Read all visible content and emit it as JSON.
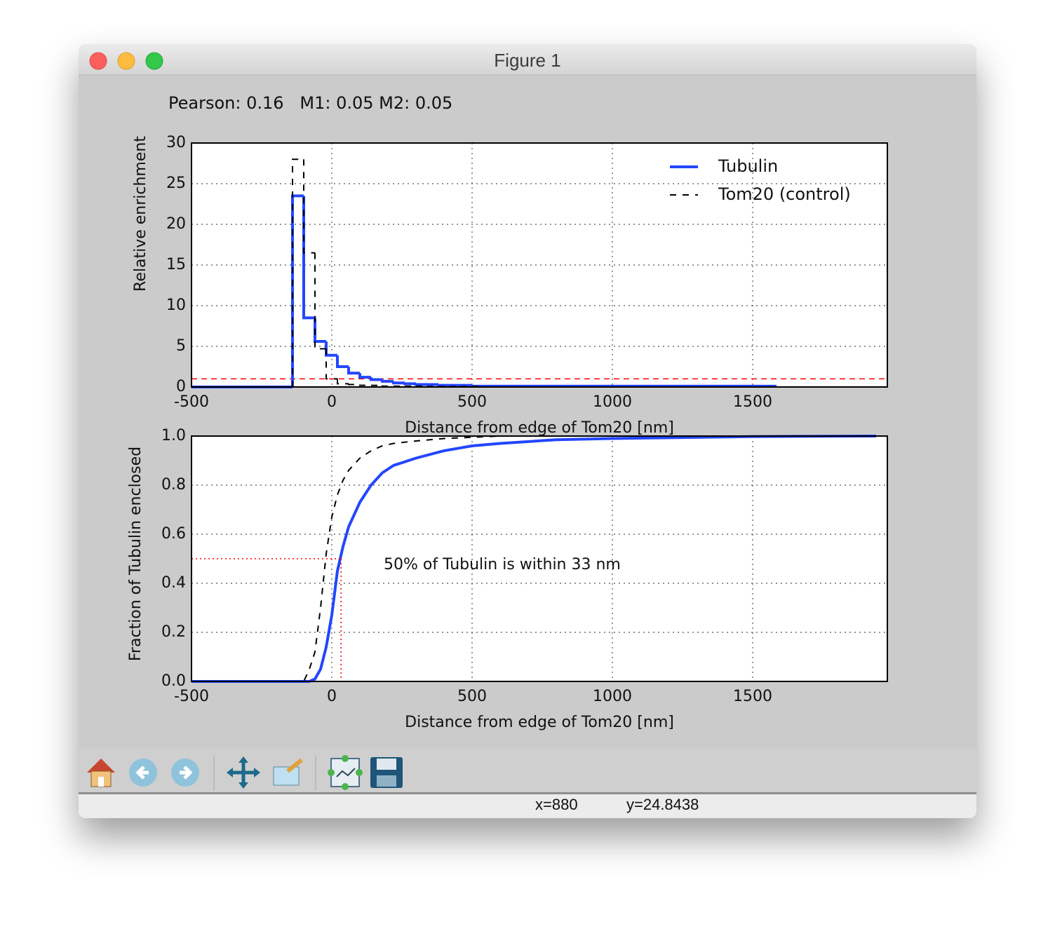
{
  "window": {
    "title": "Figure 1"
  },
  "figure_text": "Pearson: 0.16   M1: 0.05 M2: 0.05",
  "chart_data": [
    {
      "type": "histogram",
      "xlabel": "Distance from edge of Tom20 [nm]",
      "ylabel": "Relative enrichment",
      "bins": [
        -500,
        -460,
        -420,
        -380,
        -340,
        -300,
        -260,
        -220,
        -180,
        -140,
        -100,
        -60,
        -20,
        20,
        60,
        100,
        140,
        180,
        220,
        260,
        300,
        340,
        380,
        420,
        460,
        500,
        540,
        580,
        620,
        660,
        700,
        740,
        780,
        820,
        860,
        900,
        940,
        980,
        1020,
        1060,
        1100,
        1140,
        1180,
        1220,
        1260,
        1300,
        1340,
        1380,
        1420,
        1460,
        1500,
        1540,
        1580
      ],
      "series": [
        {
          "name": "Tubulin",
          "color": "#2346ff",
          "linestyle": "solid",
          "values": [
            0,
            0,
            0,
            0,
            0,
            0,
            0,
            0,
            0,
            23.5,
            8.5,
            5.6,
            3.9,
            2.5,
            1.7,
            1.2,
            0.9,
            0.7,
            0.5,
            0.4,
            0.3,
            0.3,
            0.2,
            0.2,
            0.2,
            0.1,
            0.1,
            0.1,
            0.1,
            0.1,
            0.1,
            0.1,
            0.1,
            0.1,
            0.1,
            0.1,
            0.1,
            0.1,
            0.1,
            0.1,
            0.1,
            0.1,
            0.1,
            0.1,
            0.1,
            0.1,
            0.1,
            0.1,
            0.1,
            0.1,
            0.1,
            0.1
          ]
        },
        {
          "name": "Tom20 (control)",
          "color": "#000000",
          "linestyle": "dashed",
          "values": [
            0,
            0,
            0,
            0,
            0,
            0,
            0,
            0,
            0,
            28,
            16.5,
            4.7,
            1.0,
            0.4,
            0.3,
            0.2,
            0.2,
            0.1,
            0.1,
            0.1,
            0.1,
            0.05,
            0.05,
            0.05,
            0.05,
            0.05,
            0,
            0,
            0,
            0,
            0,
            0,
            0,
            0,
            0,
            0,
            0,
            0,
            0,
            0,
            0,
            0,
            0,
            0,
            0,
            0,
            0,
            0,
            0,
            0,
            0,
            0
          ]
        }
      ],
      "hline": {
        "y": 1,
        "color": "#ff0000"
      },
      "xlim": [
        -500,
        1980
      ],
      "ylim": [
        0,
        30
      ],
      "xticks": [
        -500,
        0,
        500,
        1000,
        1500
      ],
      "yticks": [
        0,
        5,
        10,
        15,
        20,
        25,
        30
      ],
      "grid": true,
      "legend": "upper right"
    },
    {
      "type": "line",
      "xlabel": "Distance from edge of Tom20 [nm]",
      "ylabel": "Fraction of Tubulin enclosed",
      "x": [
        -500,
        -100,
        -80,
        -60,
        -40,
        -20,
        0,
        20,
        40,
        60,
        100,
        140,
        180,
        220,
        300,
        400,
        500,
        600,
        800,
        1000,
        1500,
        1940
      ],
      "series": [
        {
          "name": "Tubulin",
          "color": "#2346ff",
          "linestyle": "solid",
          "values": [
            0,
            0,
            0,
            0.01,
            0.05,
            0.14,
            0.27,
            0.45,
            0.55,
            0.63,
            0.73,
            0.8,
            0.85,
            0.88,
            0.91,
            0.94,
            0.96,
            0.97,
            0.985,
            0.99,
            0.998,
            1.0
          ]
        },
        {
          "name": "Tom20 (control)",
          "color": "#000000",
          "linestyle": "dashed",
          "values": [
            0,
            0,
            0.05,
            0.12,
            0.3,
            0.52,
            0.67,
            0.76,
            0.82,
            0.86,
            0.91,
            0.94,
            0.96,
            0.97,
            0.98,
            0.99,
            0.995,
            1.0,
            1.0,
            1.0,
            1.0,
            1.0
          ]
        }
      ],
      "guide": {
        "x": 33,
        "y": 0.5,
        "color": "#ff0000"
      },
      "annotation": "50% of Tubulin is within 33 nm",
      "xlim": [
        -500,
        1980
      ],
      "ylim": [
        0,
        1
      ],
      "xticks": [
        -500,
        0,
        500,
        1000,
        1500
      ],
      "yticks": [
        {
          "value": 0,
          "label": "0.0"
        },
        0.2,
        0.4,
        0.6,
        0.8,
        {
          "value": 1,
          "label": "1.0"
        }
      ],
      "grid": true
    }
  ],
  "status": {
    "x": "x=880",
    "y": "y=24.8438"
  }
}
